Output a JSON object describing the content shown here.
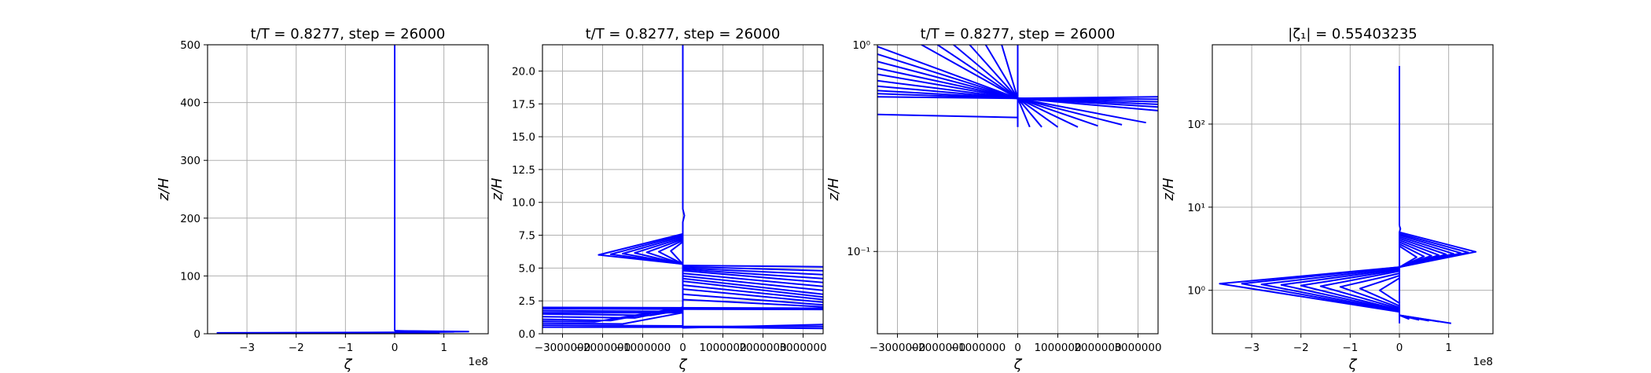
{
  "figure": {
    "line_color": "#0000ff"
  },
  "chart_data": [
    {
      "type": "line",
      "title": "t/T = 0.8277, step = 26000",
      "xlabel": "ζ",
      "ylabel": "z/H",
      "x_multiplier_label": "1e8",
      "xscale": "linear",
      "yscale": "linear",
      "xlim": [
        -380000000,
        190000000
      ],
      "ylim": [
        0,
        500
      ],
      "xticks": [
        -300000000,
        -200000000,
        -100000000,
        0,
        100000000
      ],
      "xtick_labels": [
        "−3",
        "−2",
        "−1",
        "0",
        "1"
      ],
      "yticks": [
        0,
        100,
        200,
        300,
        400,
        500
      ],
      "ytick_labels": [
        "0",
        "100",
        "200",
        "300",
        "400",
        "500"
      ],
      "grid": true,
      "series": [
        {
          "x": [
            0,
            0,
            0,
            0,
            0
          ],
          "y": [
            500,
            100,
            12,
            6,
            5
          ]
        },
        {
          "x": [
            0,
            150000000,
            0
          ],
          "y": [
            5,
            3.8,
            2.5
          ]
        },
        {
          "x": [
            0,
            120000000,
            0
          ],
          "y": [
            5,
            3.2,
            2.2
          ]
        },
        {
          "x": [
            0,
            -360000000,
            0
          ],
          "y": [
            2.5,
            1.5,
            0.8
          ]
        },
        {
          "x": [
            0,
            -250000000,
            0
          ],
          "y": [
            2.2,
            1.3,
            0.8
          ]
        },
        {
          "x": [
            0,
            90000000,
            0
          ],
          "y": [
            0.8,
            0.5,
            0.4
          ]
        }
      ]
    },
    {
      "type": "line",
      "title": "t/T = 0.8277, step = 26000",
      "xlabel": "ζ",
      "ylabel": "z/H",
      "xscale": "linear",
      "yscale": "linear",
      "xlim": [
        -3500000,
        3500000
      ],
      "ylim": [
        0,
        22
      ],
      "xticks": [
        -3000000,
        -2000000,
        -1000000,
        0,
        1000000,
        2000000,
        3000000
      ],
      "xtick_labels": [
        "−3000000",
        "−2000000",
        "−1000000",
        "0",
        "1000000",
        "2000000",
        "3000000"
      ],
      "yticks": [
        0,
        2.5,
        5,
        7.5,
        10,
        12.5,
        15,
        17.5,
        20
      ],
      "ytick_labels": [
        "0.0",
        "2.5",
        "5.0",
        "7.5",
        "10.0",
        "12.5",
        "15.0",
        "17.5",
        "20.0"
      ],
      "grid": true,
      "series": [
        {
          "x": [
            0,
            0,
            0,
            40000,
            0,
            0
          ],
          "y": [
            22,
            12,
            9.5,
            9,
            8.5,
            0.4
          ]
        },
        {
          "x": [
            0,
            -2100000,
            0
          ],
          "y": [
            7.6,
            6.0,
            5.3
          ]
        },
        {
          "x": [
            0,
            -1800000,
            0
          ],
          "y": [
            7.5,
            6.05,
            5.3
          ]
        },
        {
          "x": [
            0,
            -1500000,
            0
          ],
          "y": [
            7.4,
            6.1,
            5.3
          ]
        },
        {
          "x": [
            0,
            -1200000,
            0
          ],
          "y": [
            7.3,
            6.15,
            5.3
          ]
        },
        {
          "x": [
            0,
            -900000,
            0
          ],
          "y": [
            7.2,
            6.2,
            5.3
          ]
        },
        {
          "x": [
            0,
            -600000,
            0
          ],
          "y": [
            7.1,
            6.25,
            5.3
          ]
        },
        {
          "x": [
            0,
            -300000,
            0
          ],
          "y": [
            7.0,
            6.3,
            5.3
          ]
        },
        {
          "x": [
            0,
            3500000
          ],
          "y": [
            5.2,
            5.1
          ]
        },
        {
          "x": [
            0,
            3500000
          ],
          "y": [
            5.1,
            4.8
          ]
        },
        {
          "x": [
            0,
            3500000
          ],
          "y": [
            5.0,
            4.5
          ]
        },
        {
          "x": [
            0,
            3500000
          ],
          "y": [
            4.9,
            4.2
          ]
        },
        {
          "x": [
            0,
            3500000
          ],
          "y": [
            4.8,
            3.9
          ]
        },
        {
          "x": [
            0,
            3500000
          ],
          "y": [
            4.6,
            3.6
          ]
        },
        {
          "x": [
            0,
            3500000
          ],
          "y": [
            4.4,
            3.3
          ]
        },
        {
          "x": [
            0,
            3500000
          ],
          "y": [
            4.2,
            3.0
          ]
        },
        {
          "x": [
            0,
            3500000
          ],
          "y": [
            4.0,
            2.8
          ]
        },
        {
          "x": [
            0,
            3500000
          ],
          "y": [
            3.7,
            2.6
          ]
        },
        {
          "x": [
            0,
            3500000
          ],
          "y": [
            3.4,
            2.4
          ]
        },
        {
          "x": [
            0,
            3500000
          ],
          "y": [
            3.0,
            2.2
          ]
        },
        {
          "x": [
            0,
            3500000
          ],
          "y": [
            2.6,
            2.05
          ]
        },
        {
          "x": [
            -3500000,
            3500000
          ],
          "y": [
            2.0,
            1.95
          ]
        },
        {
          "x": [
            -3500000,
            3500000
          ],
          "y": [
            1.9,
            1.85
          ]
        },
        {
          "x": [
            -3500000,
            0
          ],
          "y": [
            1.75,
            1.7
          ]
        },
        {
          "x": [
            -3500000,
            0
          ],
          "y": [
            1.6,
            1.6
          ]
        },
        {
          "x": [
            -3500000,
            -800000,
            0
          ],
          "y": [
            1.5,
            1.4,
            1.8
          ]
        },
        {
          "x": [
            -3500000,
            -1200000,
            0
          ],
          "y": [
            1.3,
            1.2,
            1.9
          ]
        },
        {
          "x": [
            -3500000,
            -1800000,
            0
          ],
          "y": [
            1.1,
            1.0,
            2.0
          ]
        },
        {
          "x": [
            -3500000,
            -2200000,
            0
          ],
          "y": [
            0.95,
            0.9,
            2.0
          ]
        },
        {
          "x": [
            -3500000,
            -1500000,
            0
          ],
          "y": [
            0.8,
            0.75,
            1.6
          ]
        },
        {
          "x": [
            -3500000,
            0
          ],
          "y": [
            0.65,
            0.6
          ]
        },
        {
          "x": [
            -3500000,
            0
          ],
          "y": [
            0.5,
            0.5
          ]
        },
        {
          "x": [
            0,
            3500000
          ],
          "y": [
            0.45,
            0.7
          ]
        },
        {
          "x": [
            0,
            3500000
          ],
          "y": [
            0.5,
            0.4
          ]
        },
        {
          "x": [
            0,
            3500000
          ],
          "y": [
            0.55,
            0.55
          ]
        }
      ]
    },
    {
      "type": "line",
      "title": "t/T = 0.8277, step = 26000",
      "xlabel": "ζ",
      "ylabel": "z/H",
      "xscale": "linear",
      "yscale": "log",
      "xlim": [
        -3500000,
        3500000
      ],
      "ylim": [
        0.04,
        1.0
      ],
      "xticks": [
        -3000000,
        -2000000,
        -1000000,
        0,
        1000000,
        2000000,
        3000000
      ],
      "xtick_labels": [
        "−3000000",
        "−2000000",
        "−1000000",
        "0",
        "1000000",
        "2000000",
        "3000000"
      ],
      "yticks": [
        0.1,
        1.0
      ],
      "ytick_labels": [
        "10⁻¹",
        "10⁰"
      ],
      "grid": true,
      "series": [
        {
          "x": [
            0,
            0
          ],
          "y": [
            1.0,
            0.41
          ]
        },
        {
          "x": [
            0,
            0
          ],
          "y": [
            0.55,
            0.4
          ]
        },
        {
          "x": [
            -3500000,
            0
          ],
          "y": [
            0.46,
            0.445
          ]
        },
        {
          "x": [
            -2400000,
            0
          ],
          "y": [
            1.0,
            0.55
          ]
        },
        {
          "x": [
            -2000000,
            0
          ],
          "y": [
            1.0,
            0.55
          ]
        },
        {
          "x": [
            -1600000,
            0
          ],
          "y": [
            1.0,
            0.55
          ]
        },
        {
          "x": [
            -1200000,
            0
          ],
          "y": [
            1.0,
            0.55
          ]
        },
        {
          "x": [
            -800000,
            0
          ],
          "y": [
            1.0,
            0.55
          ]
        },
        {
          "x": [
            -400000,
            0
          ],
          "y": [
            1.0,
            0.55
          ]
        },
        {
          "x": [
            -3500000,
            0
          ],
          "y": [
            0.98,
            0.55
          ]
        },
        {
          "x": [
            -3500000,
            0
          ],
          "y": [
            0.9,
            0.55
          ]
        },
        {
          "x": [
            -3500000,
            0
          ],
          "y": [
            0.83,
            0.55
          ]
        },
        {
          "x": [
            -3500000,
            0
          ],
          "y": [
            0.77,
            0.55
          ]
        },
        {
          "x": [
            -3500000,
            0
          ],
          "y": [
            0.72,
            0.55
          ]
        },
        {
          "x": [
            -3500000,
            0
          ],
          "y": [
            0.67,
            0.55
          ]
        },
        {
          "x": [
            -3500000,
            0
          ],
          "y": [
            0.63,
            0.55
          ]
        },
        {
          "x": [
            -3500000,
            0
          ],
          "y": [
            0.6,
            0.55
          ]
        },
        {
          "x": [
            -3500000,
            0
          ],
          "y": [
            0.58,
            0.55
          ]
        },
        {
          "x": [
            -3500000,
            0
          ],
          "y": [
            0.56,
            0.55
          ]
        },
        {
          "x": [
            0,
            3500000
          ],
          "y": [
            0.55,
            0.56
          ]
        },
        {
          "x": [
            0,
            3500000
          ],
          "y": [
            0.55,
            0.545
          ]
        },
        {
          "x": [
            0,
            3500000
          ],
          "y": [
            0.55,
            0.53
          ]
        },
        {
          "x": [
            0,
            3500000
          ],
          "y": [
            0.55,
            0.515
          ]
        },
        {
          "x": [
            0,
            3500000
          ],
          "y": [
            0.55,
            0.5
          ]
        },
        {
          "x": [
            0,
            3500000
          ],
          "y": [
            0.55,
            0.48
          ]
        },
        {
          "x": [
            0,
            3200000
          ],
          "y": [
            0.55,
            0.42
          ]
        },
        {
          "x": [
            0,
            2600000
          ],
          "y": [
            0.55,
            0.41
          ]
        },
        {
          "x": [
            0,
            2000000
          ],
          "y": [
            0.55,
            0.405
          ]
        },
        {
          "x": [
            0,
            1500000
          ],
          "y": [
            0.55,
            0.4
          ]
        },
        {
          "x": [
            0,
            1000000
          ],
          "y": [
            0.55,
            0.4
          ]
        },
        {
          "x": [
            0,
            600000
          ],
          "y": [
            0.55,
            0.4
          ]
        },
        {
          "x": [
            0,
            300000
          ],
          "y": [
            0.55,
            0.4
          ]
        }
      ]
    },
    {
      "type": "line",
      "title": "|ζ₁| = 0.55403235",
      "xlabel": "ζ",
      "ylabel": "z/H",
      "x_multiplier_label": "1e8",
      "xscale": "linear",
      "yscale": "log",
      "xlim": [
        -380000000,
        190000000
      ],
      "ylim": [
        0.3,
        900
      ],
      "xticks": [
        -300000000,
        -200000000,
        -100000000,
        0,
        100000000
      ],
      "xtick_labels": [
        "−3",
        "−2",
        "−1",
        "0",
        "1"
      ],
      "yticks": [
        1,
        10,
        100
      ],
      "ytick_labels": [
        "10⁰",
        "10¹",
        "10²"
      ],
      "grid": true,
      "series": [
        {
          "x": [
            0,
            0,
            0
          ],
          "y": [
            500,
            10,
            6.0
          ]
        },
        {
          "x": [
            0,
            2000000,
            0,
            0
          ],
          "y": [
            6.0,
            5.5,
            5.0,
            0.4
          ]
        },
        {
          "x": [
            0,
            155000000,
            0
          ],
          "y": [
            5.0,
            2.9,
            1.9
          ]
        },
        {
          "x": [
            0,
            140000000,
            0
          ],
          "y": [
            4.8,
            2.85,
            1.9
          ]
        },
        {
          "x": [
            0,
            125000000,
            0
          ],
          "y": [
            4.6,
            2.8,
            1.9
          ]
        },
        {
          "x": [
            0,
            110000000,
            0
          ],
          "y": [
            4.4,
            2.75,
            1.9
          ]
        },
        {
          "x": [
            0,
            95000000,
            0
          ],
          "y": [
            4.2,
            2.7,
            1.9
          ]
        },
        {
          "x": [
            0,
            80000000,
            0
          ],
          "y": [
            4.0,
            2.65,
            1.9
          ]
        },
        {
          "x": [
            0,
            65000000,
            0
          ],
          "y": [
            3.8,
            2.6,
            1.9
          ]
        },
        {
          "x": [
            0,
            50000000,
            0
          ],
          "y": [
            3.6,
            2.55,
            1.9
          ]
        },
        {
          "x": [
            0,
            35000000,
            0
          ],
          "y": [
            3.4,
            2.5,
            1.9
          ]
        },
        {
          "x": [
            0,
            -365000000,
            0
          ],
          "y": [
            1.9,
            1.2,
            0.55
          ]
        },
        {
          "x": [
            0,
            -320000000,
            0
          ],
          "y": [
            1.9,
            1.2,
            0.55
          ]
        },
        {
          "x": [
            0,
            -280000000,
            0
          ],
          "y": [
            1.85,
            1.18,
            0.56
          ]
        },
        {
          "x": [
            0,
            -240000000,
            0
          ],
          "y": [
            1.8,
            1.16,
            0.57
          ]
        },
        {
          "x": [
            0,
            -200000000,
            0
          ],
          "y": [
            1.75,
            1.14,
            0.58
          ]
        },
        {
          "x": [
            0,
            -160000000,
            0
          ],
          "y": [
            1.7,
            1.12,
            0.6
          ]
        },
        {
          "x": [
            0,
            -120000000,
            0
          ],
          "y": [
            1.6,
            1.1,
            0.62
          ]
        },
        {
          "x": [
            0,
            -80000000,
            0
          ],
          "y": [
            1.5,
            1.05,
            0.65
          ]
        },
        {
          "x": [
            0,
            -40000000,
            0
          ],
          "y": [
            1.4,
            1.0,
            0.7
          ]
        },
        {
          "x": [
            0,
            105000000
          ],
          "y": [
            0.5,
            0.4
          ]
        },
        {
          "x": [
            0,
            80000000
          ],
          "y": [
            0.5,
            0.42
          ]
        },
        {
          "x": [
            0,
            60000000
          ],
          "y": [
            0.5,
            0.43
          ]
        },
        {
          "x": [
            0,
            40000000
          ],
          "y": [
            0.5,
            0.44
          ]
        },
        {
          "x": [
            0,
            20000000
          ],
          "y": [
            0.5,
            0.45
          ]
        }
      ]
    }
  ]
}
